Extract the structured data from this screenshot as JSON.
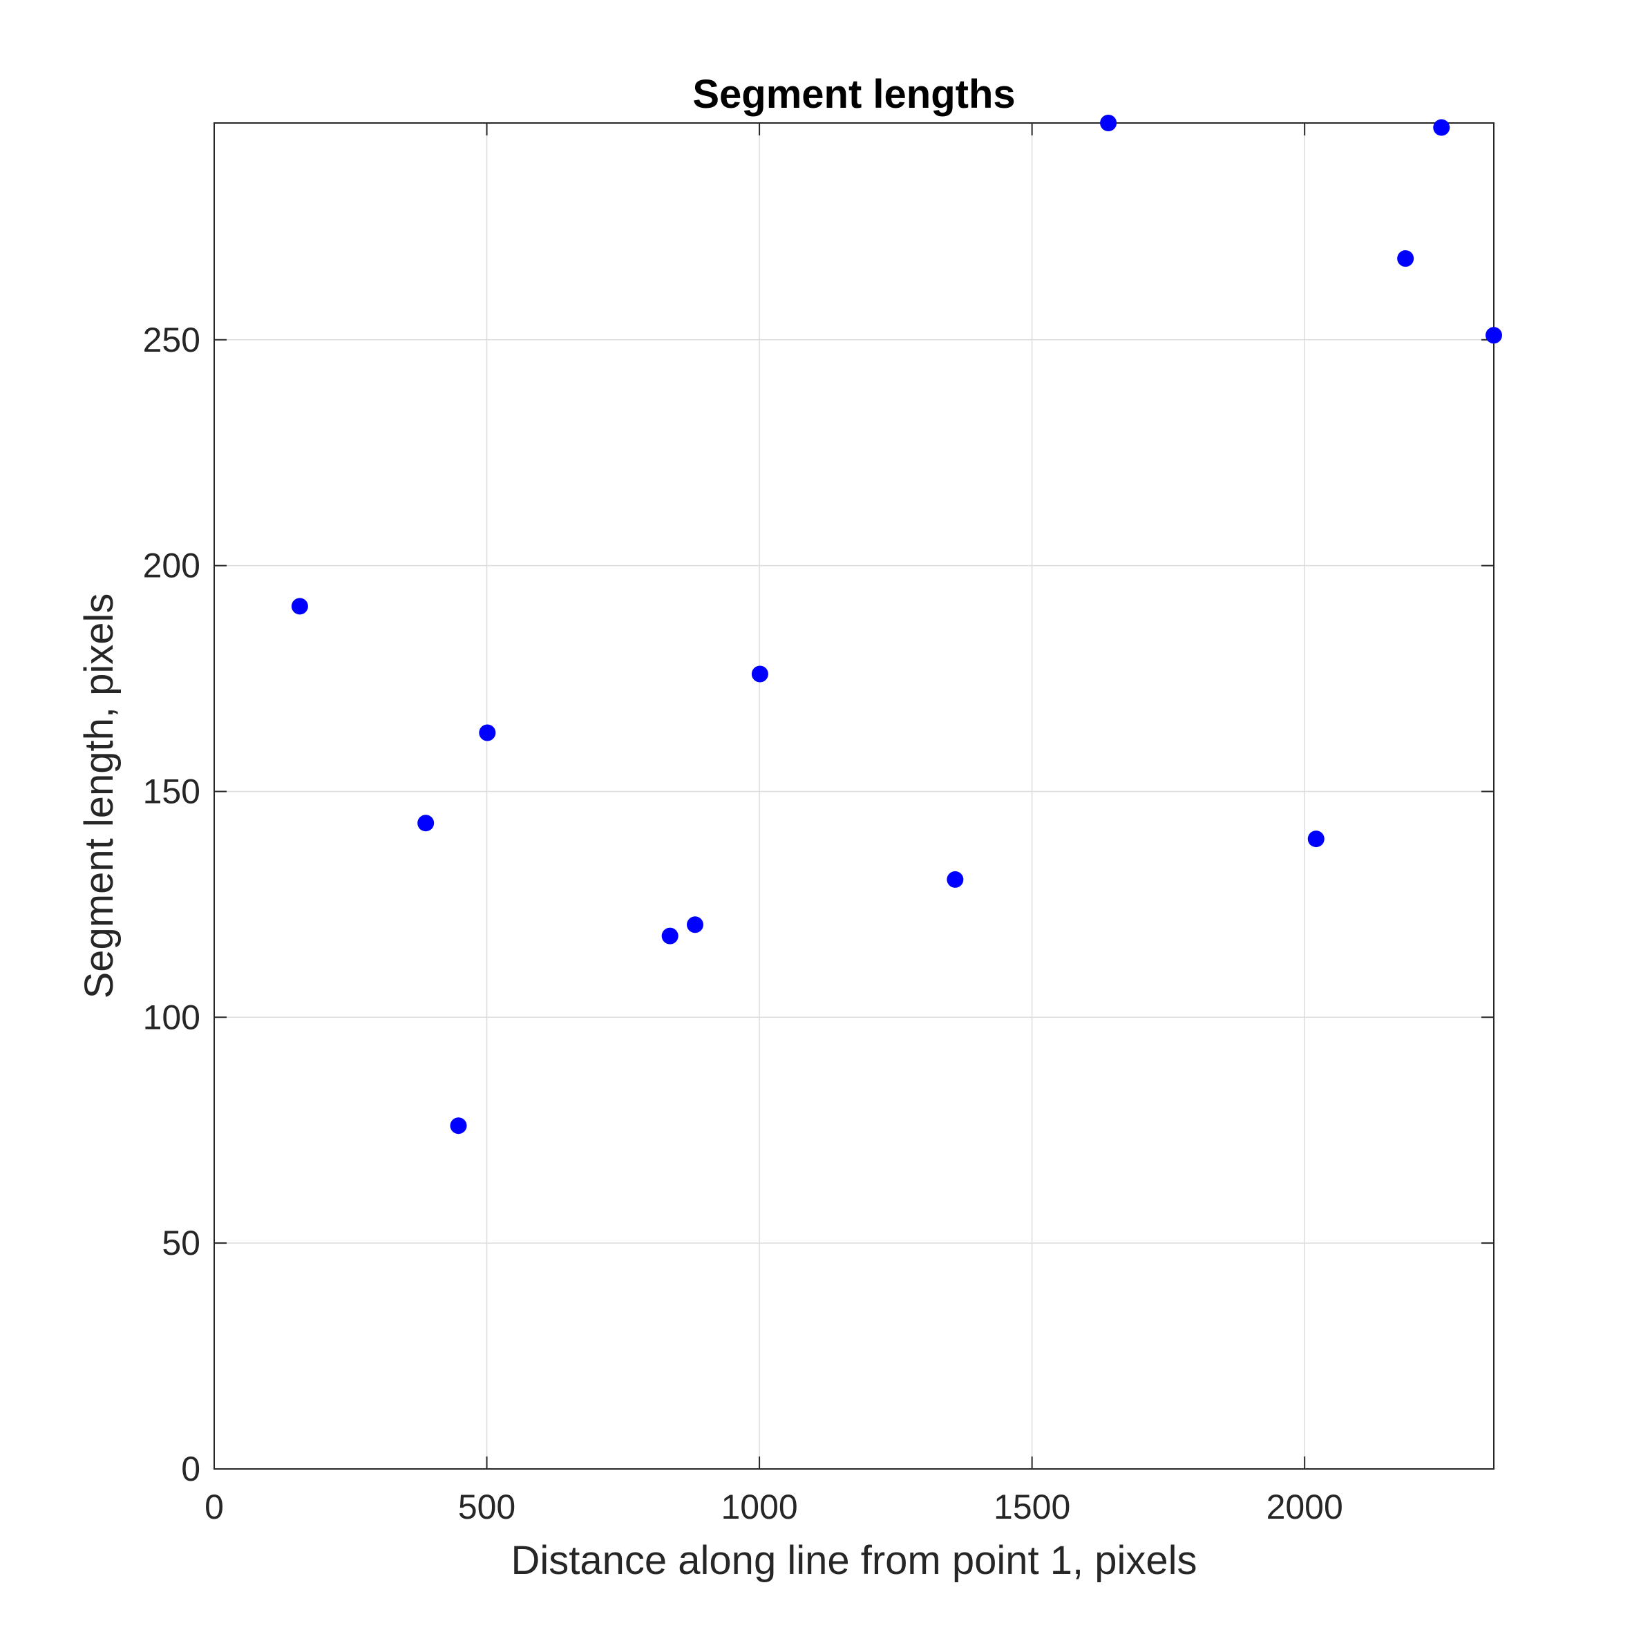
{
  "chart_data": {
    "type": "scatter",
    "title": "Segment lengths",
    "xlabel": "Distance along line from point 1, pixels",
    "ylabel": "Segment length, pixels",
    "xlim": [
      0,
      2347
    ],
    "ylim": [
      0,
      298
    ],
    "xticks": [
      0,
      500,
      1000,
      1500,
      2000
    ],
    "yticks": [
      0,
      50,
      100,
      150,
      200,
      250
    ],
    "xtick_labels": [
      "0",
      "500",
      "1000",
      "1500",
      "2000"
    ],
    "ytick_labels": [
      "0",
      "50",
      "100",
      "150",
      "200",
      "250"
    ],
    "grid": true,
    "marker_color": "#0000ff",
    "series": [
      {
        "x": [
          157,
          388,
          448,
          501,
          836,
          882,
          1001,
          1359,
          1640,
          2021,
          2185,
          2251,
          2347
        ],
        "y": [
          191,
          143,
          76,
          163,
          118,
          120.5,
          176,
          130.5,
          298,
          139.5,
          268,
          297,
          251
        ]
      }
    ]
  }
}
